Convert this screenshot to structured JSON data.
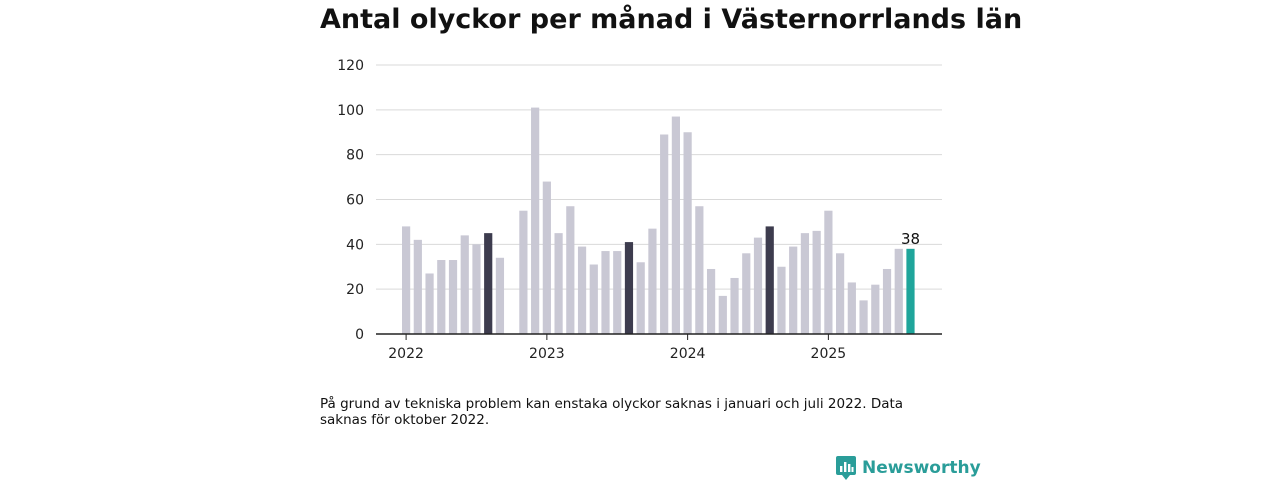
{
  "title": "Antal olyckor per månad i Västernorrlands län",
  "note": "På grund av tekniska problem kan enstaka olyckor saknas i januari och juli 2022. Data saknas för oktober 2022.",
  "brand": {
    "name": "Newsworthy",
    "icon": "newsworthy-logo-icon",
    "color": "#2a9d99"
  },
  "chart_data": {
    "type": "bar",
    "title": "Antal olyckor per månad i Västernorrlands län",
    "xlabel": "",
    "ylabel": "",
    "ylim": [
      0,
      120
    ],
    "yticks": [
      0,
      20,
      40,
      60,
      80,
      100,
      120
    ],
    "grid": true,
    "x_tick_labels": [
      {
        "label": "2022",
        "category": "2022-01"
      },
      {
        "label": "2023",
        "category": "2023-01"
      },
      {
        "label": "2024",
        "category": "2024-01"
      },
      {
        "label": "2025",
        "category": "2025-01"
      }
    ],
    "colors": {
      "default": "#c9c8d4",
      "highlight": "#3d3c4e",
      "latest": "#1fa59b"
    },
    "categories": [
      "2022-01",
      "2022-02",
      "2022-03",
      "2022-04",
      "2022-05",
      "2022-06",
      "2022-07",
      "2022-08",
      "2022-09",
      "2022-10",
      "2022-11",
      "2022-12",
      "2023-01",
      "2023-02",
      "2023-03",
      "2023-04",
      "2023-05",
      "2023-06",
      "2023-07",
      "2023-08",
      "2023-09",
      "2023-10",
      "2023-11",
      "2023-12",
      "2024-01",
      "2024-02",
      "2024-03",
      "2024-04",
      "2024-05",
      "2024-06",
      "2024-07",
      "2024-08",
      "2024-09",
      "2024-10",
      "2024-11",
      "2024-12",
      "2025-01",
      "2025-02",
      "2025-03",
      "2025-04",
      "2025-05",
      "2025-06",
      "2025-07",
      "2025-08"
    ],
    "values": [
      48,
      42,
      27,
      33,
      33,
      44,
      40,
      45,
      34,
      null,
      55,
      101,
      68,
      45,
      57,
      39,
      31,
      37,
      37,
      41,
      32,
      47,
      89,
      97,
      90,
      57,
      29,
      17,
      25,
      36,
      43,
      48,
      30,
      39,
      45,
      46,
      55,
      36,
      23,
      15,
      22,
      29,
      38,
      38
    ],
    "highlight_indices": [
      7,
      19,
      31
    ],
    "latest_index": 43,
    "data_labels": [
      {
        "index": 43,
        "text": "38"
      }
    ]
  }
}
